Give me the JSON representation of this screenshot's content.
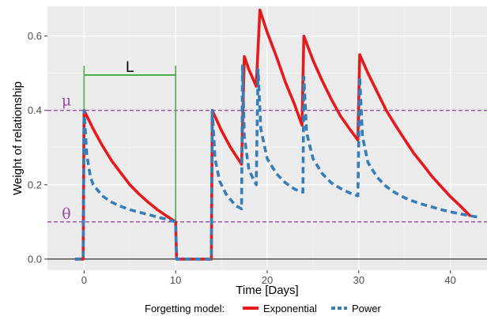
{
  "chart_data": {
    "type": "line",
    "title": "",
    "xlabel": "Time [Days]",
    "ylabel": "Weight of relationship",
    "xlim": [
      -4,
      44
    ],
    "ylim": [
      -0.03,
      0.68
    ],
    "x_ticks": [
      0,
      10,
      20,
      30,
      40
    ],
    "y_ticks": [
      0.0,
      0.2,
      0.4,
      0.6
    ],
    "x_tick_labels": [
      "0",
      "10",
      "20",
      "30",
      "40"
    ],
    "y_tick_labels": [
      "0.0",
      "0.2",
      "0.4",
      "0.6"
    ],
    "grid": true,
    "legend": {
      "position": "bottom",
      "title": "Forgetting model:",
      "entries": [
        "Exponential",
        "Power"
      ]
    },
    "colors": {
      "exponential": "#e41a1c",
      "power": "#377eb8",
      "annotation_mu_theta": "#984ea3",
      "annotation_L": "#4daf4a",
      "panel": "#ebebeb"
    },
    "annotations": {
      "mu": {
        "label": "μ",
        "y": 0.4
      },
      "theta": {
        "label": "θ",
        "y": 0.1
      },
      "L": {
        "label": "L",
        "x_start": 0,
        "x_end": 10
      }
    },
    "series": [
      {
        "name": "Exponential",
        "points": [
          [
            -1,
            0
          ],
          [
            -0.1,
            0
          ],
          [
            0,
            0.4
          ],
          [
            1,
            0.35
          ],
          [
            2,
            0.305
          ],
          [
            3,
            0.265
          ],
          [
            4,
            0.232
          ],
          [
            5,
            0.2
          ],
          [
            6,
            0.175
          ],
          [
            7,
            0.153
          ],
          [
            8,
            0.133
          ],
          [
            9,
            0.116
          ],
          [
            10,
            0.1
          ],
          [
            10.1,
            0
          ],
          [
            13.9,
            0
          ],
          [
            14,
            0.4
          ],
          [
            15,
            0.346
          ],
          [
            16,
            0.3
          ],
          [
            17.2,
            0.255
          ],
          [
            17.5,
            0.545
          ],
          [
            18,
            0.51
          ],
          [
            18.8,
            0.465
          ],
          [
            19.2,
            0.67
          ],
          [
            20,
            0.61
          ],
          [
            21,
            0.545
          ],
          [
            22,
            0.475
          ],
          [
            23,
            0.415
          ],
          [
            23.8,
            0.36
          ],
          [
            24,
            0.6
          ],
          [
            25,
            0.535
          ],
          [
            26,
            0.48
          ],
          [
            27,
            0.43
          ],
          [
            28,
            0.385
          ],
          [
            29,
            0.35
          ],
          [
            29.9,
            0.32
          ],
          [
            30.1,
            0.55
          ],
          [
            31,
            0.5
          ],
          [
            32,
            0.45
          ],
          [
            33,
            0.4
          ],
          [
            34,
            0.36
          ],
          [
            35,
            0.322
          ],
          [
            36,
            0.285
          ],
          [
            37,
            0.254
          ],
          [
            38,
            0.222
          ],
          [
            39,
            0.195
          ],
          [
            40,
            0.168
          ],
          [
            41,
            0.145
          ],
          [
            42,
            0.12
          ],
          [
            42.2,
            0.115
          ]
        ]
      },
      {
        "name": "Power",
        "points": [
          [
            -1,
            0
          ],
          [
            -0.1,
            0
          ],
          [
            0,
            0.4
          ],
          [
            0.3,
            0.28
          ],
          [
            0.7,
            0.22
          ],
          [
            1,
            0.2
          ],
          [
            2,
            0.17
          ],
          [
            3,
            0.153
          ],
          [
            4,
            0.142
          ],
          [
            5,
            0.133
          ],
          [
            6,
            0.126
          ],
          [
            7,
            0.12
          ],
          [
            8,
            0.113
          ],
          [
            9,
            0.107
          ],
          [
            10,
            0.1
          ],
          [
            10.1,
            0
          ],
          [
            13.9,
            0
          ],
          [
            14,
            0.4
          ],
          [
            14.3,
            0.27
          ],
          [
            14.8,
            0.21
          ],
          [
            15.5,
            0.175
          ],
          [
            16.5,
            0.145
          ],
          [
            17.2,
            0.135
          ],
          [
            17.3,
            0.52
          ],
          [
            17.5,
            0.33
          ],
          [
            18,
            0.24
          ],
          [
            18.8,
            0.2
          ],
          [
            19,
            0.51
          ],
          [
            19.3,
            0.35
          ],
          [
            20,
            0.27
          ],
          [
            21,
            0.23
          ],
          [
            22,
            0.205
          ],
          [
            23,
            0.188
          ],
          [
            23.9,
            0.18
          ],
          [
            24,
            0.49
          ],
          [
            24.3,
            0.34
          ],
          [
            25,
            0.27
          ],
          [
            26,
            0.23
          ],
          [
            27,
            0.205
          ],
          [
            28,
            0.19
          ],
          [
            29,
            0.178
          ],
          [
            29.9,
            0.17
          ],
          [
            30.1,
            0.49
          ],
          [
            30.4,
            0.33
          ],
          [
            31,
            0.26
          ],
          [
            32,
            0.22
          ],
          [
            33,
            0.195
          ],
          [
            34,
            0.178
          ],
          [
            35,
            0.165
          ],
          [
            36,
            0.155
          ],
          [
            37,
            0.147
          ],
          [
            38,
            0.14
          ],
          [
            39,
            0.133
          ],
          [
            40,
            0.127
          ],
          [
            41,
            0.122
          ],
          [
            42,
            0.117
          ],
          [
            43,
            0.113
          ]
        ]
      }
    ]
  }
}
